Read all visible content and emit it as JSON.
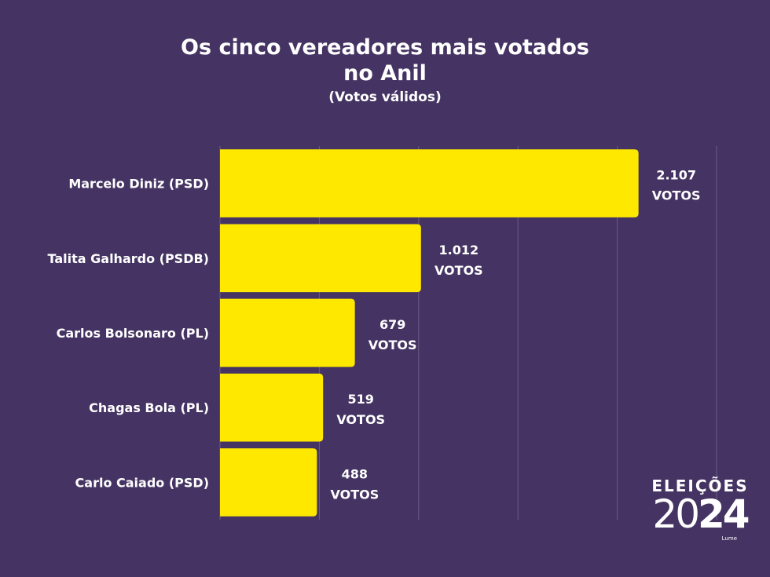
{
  "header": {
    "title": "Os cinco vereadores mais votados no Anil",
    "subtitle": "(Votos válidos)"
  },
  "colors": {
    "background": "#453463",
    "bar": "#FFE800",
    "gridline": "#6A5B85",
    "text": "#FFFFFF"
  },
  "chart_data": {
    "type": "bar",
    "orientation": "horizontal",
    "title": "Os cinco vereadores mais votados no Anil",
    "subtitle": "(Votos válidos)",
    "categories": [
      "Marcelo Diniz (PSD)",
      "Talita Galhardo (PSDB)",
      "Carlos Bolsonaro (PL)",
      "Chagas Bola (PL)",
      "Carlo Caiado (PSD)"
    ],
    "values": [
      2107,
      1012,
      679,
      519,
      488
    ],
    "value_labels": [
      [
        "2.107",
        "VOTOS"
      ],
      [
        "1.012",
        "VOTOS"
      ],
      [
        "679",
        "VOTOS"
      ],
      [
        "519",
        "VOTOS"
      ],
      [
        "488",
        "VOTOS"
      ]
    ],
    "xlim": [
      0,
      2500
    ],
    "grid": true,
    "legend": "none"
  },
  "logo": {
    "top": "ELEIÇÕES",
    "year_thin": "20",
    "year_bold": "24",
    "brand": "Lume"
  }
}
